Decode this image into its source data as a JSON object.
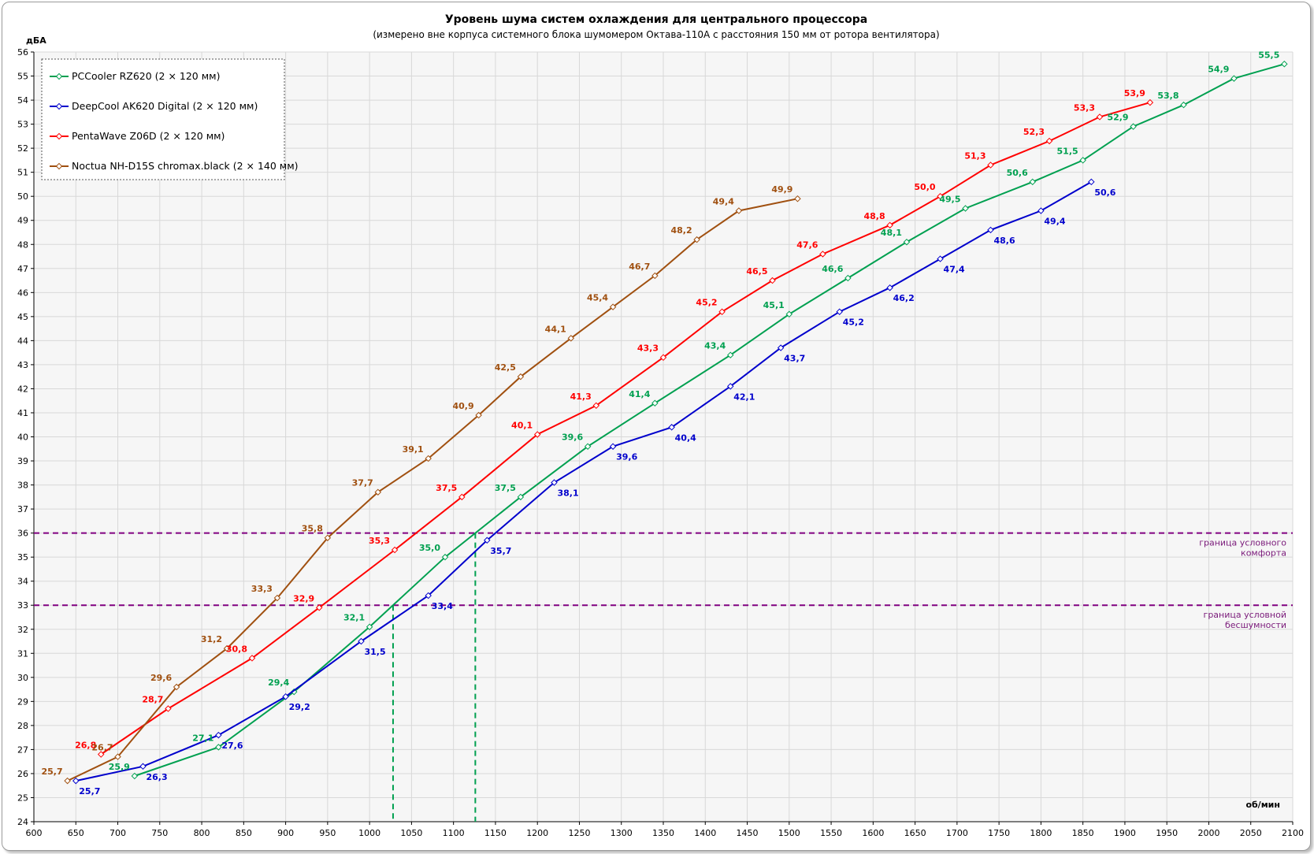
{
  "chart_data": {
    "type": "line",
    "title": "Уровень шума систем охлаждения для центрального процессора",
    "subtitle": "(измерено вне корпуса системного блока шумомером Октава-110А с расстояния 150 мм от ротора вентилятора)",
    "xlabel": "об/мин",
    "ylabel": "дБА",
    "xlim": [
      600,
      2100
    ],
    "ylim": [
      24,
      56
    ],
    "x_ticks": [
      600,
      650,
      700,
      750,
      800,
      850,
      900,
      950,
      1000,
      1050,
      1100,
      1150,
      1200,
      1250,
      1300,
      1350,
      1400,
      1450,
      1500,
      1550,
      1600,
      1650,
      1700,
      1750,
      1800,
      1850,
      1900,
      1950,
      2000,
      2050,
      2100
    ],
    "y_ticks": [
      24,
      25,
      26,
      27,
      28,
      29,
      30,
      31,
      32,
      33,
      34,
      35,
      36,
      37,
      38,
      39,
      40,
      41,
      42,
      43,
      44,
      45,
      46,
      47,
      48,
      49,
      50,
      51,
      52,
      53,
      54,
      55,
      56
    ],
    "legend_position": "top-left",
    "grid": true,
    "series": [
      {
        "name": "PCCooler RZ620 (2 × 120 мм)",
        "color": "#00a050",
        "points": [
          [
            720,
            25.9
          ],
          [
            820,
            27.1
          ],
          [
            910,
            29.4
          ],
          [
            1000,
            32.1
          ],
          [
            1090,
            35.0
          ],
          [
            1180,
            37.5
          ],
          [
            1260,
            39.6
          ],
          [
            1340,
            41.4
          ],
          [
            1430,
            43.4
          ],
          [
            1500,
            45.1
          ],
          [
            1570,
            46.6
          ],
          [
            1640,
            48.1
          ],
          [
            1710,
            49.5
          ],
          [
            1790,
            50.6
          ],
          [
            1850,
            51.5
          ],
          [
            1910,
            52.9
          ],
          [
            1970,
            53.8
          ],
          [
            2030,
            54.9
          ],
          [
            2090,
            55.5
          ]
        ],
        "labels": [
          "25,9",
          "27,1",
          "29,4",
          "32,1",
          "35,0",
          "37,5",
          "39,6",
          "41,4",
          "43,4",
          "45,1",
          "46,6",
          "48,1",
          "49,5",
          "50,6",
          "51,5",
          "52,9",
          "53,8",
          "54,9",
          "55,5"
        ]
      },
      {
        "name": "DeepCool AK620 Digital (2 × 120 мм)",
        "color": "#0000cc",
        "points": [
          [
            650,
            25.7
          ],
          [
            730,
            26.3
          ],
          [
            820,
            27.6
          ],
          [
            900,
            29.2
          ],
          [
            990,
            31.5
          ],
          [
            1070,
            33.4
          ],
          [
            1140,
            35.7
          ],
          [
            1220,
            38.1
          ],
          [
            1290,
            39.6
          ],
          [
            1360,
            40.4
          ],
          [
            1430,
            42.1
          ],
          [
            1490,
            43.7
          ],
          [
            1560,
            45.2
          ],
          [
            1620,
            46.2
          ],
          [
            1680,
            47.4
          ],
          [
            1740,
            48.6
          ],
          [
            1800,
            49.4
          ],
          [
            1860,
            50.6
          ]
        ],
        "labels": [
          "25,7",
          "26,3",
          "27,6",
          "29,2",
          "31,5",
          "33,4",
          "35,7",
          "38,1",
          "39,6",
          "40,4",
          "42,1",
          "43,7",
          "45,2",
          "46,2",
          "47,4",
          "48,6",
          "49,4",
          "50,6"
        ]
      },
      {
        "name": "PentaWave Z06D (2 × 120 мм)",
        "color": "#ff0000",
        "points": [
          [
            680,
            26.8
          ],
          [
            760,
            28.7
          ],
          [
            860,
            30.8
          ],
          [
            940,
            32.9
          ],
          [
            1030,
            35.3
          ],
          [
            1110,
            37.5
          ],
          [
            1200,
            40.1
          ],
          [
            1270,
            41.3
          ],
          [
            1350,
            43.3
          ],
          [
            1420,
            45.2
          ],
          [
            1480,
            46.5
          ],
          [
            1540,
            47.6
          ],
          [
            1620,
            48.8
          ],
          [
            1680,
            50.0
          ],
          [
            1740,
            51.3
          ],
          [
            1810,
            52.3
          ],
          [
            1870,
            53.3
          ],
          [
            1930,
            53.9
          ]
        ],
        "labels": [
          "26,8",
          "28,7",
          "30,8",
          "32,9",
          "35,3",
          "37,5",
          "40,1",
          "41,3",
          "43,3",
          "45,2",
          "46,5",
          "47,6",
          "48,8",
          "50,0",
          "51,3",
          "52,3",
          "53,3",
          "53,9"
        ]
      },
      {
        "name": "Noctua NH-D15S chromax.black (2 × 140 мм)",
        "color": "#a05010",
        "points": [
          [
            640,
            25.7
          ],
          [
            700,
            26.7
          ],
          [
            770,
            29.6
          ],
          [
            830,
            31.2
          ],
          [
            890,
            33.3
          ],
          [
            950,
            35.8
          ],
          [
            1010,
            37.7
          ],
          [
            1070,
            39.1
          ],
          [
            1130,
            40.9
          ],
          [
            1180,
            42.5
          ],
          [
            1240,
            44.1
          ],
          [
            1290,
            45.4
          ],
          [
            1340,
            46.7
          ],
          [
            1390,
            48.2
          ],
          [
            1440,
            49.4
          ],
          [
            1510,
            49.9
          ]
        ],
        "labels": [
          "25,7",
          "26,7",
          "29,6",
          "31,2",
          "33,3",
          "35,8",
          "37,7",
          "39,1",
          "40,9",
          "42,5",
          "44,1",
          "45,4",
          "46,7",
          "48,2",
          "49,4",
          "49,9"
        ]
      }
    ],
    "reference_lines": [
      {
        "y": 36,
        "label_line1": "граница  условного",
        "label_line2": "комфорта",
        "color": "#800080"
      },
      {
        "y": 33,
        "label_line1": "граница  условной",
        "label_line2": "бесшумности",
        "color": "#800080"
      }
    ],
    "vertical_markers": [
      {
        "x": 1028,
        "y": 33,
        "color": "#00a050"
      },
      {
        "x": 1126,
        "y": 36,
        "color": "#00a050"
      }
    ]
  }
}
